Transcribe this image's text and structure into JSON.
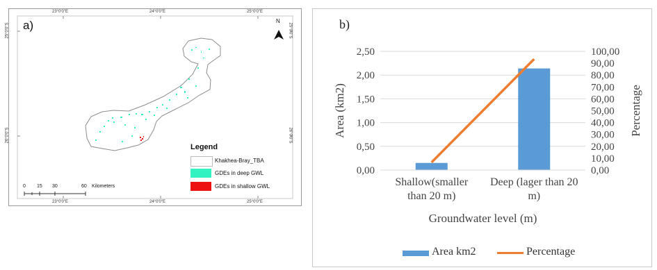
{
  "panel_a": {
    "label": "a)",
    "top_ticks": [
      "23°0'0\"E",
      "24°0'0\"E",
      "25°0'0\"E"
    ],
    "bottom_ticks": [
      "23°0'0\"E",
      "24°0'0\"E",
      "25°0'0\"E"
    ],
    "left_ticks": [
      "25°0'0\"S",
      "26°0'0\"S"
    ],
    "right_ticks": [
      "25°0'0\"S",
      "26°0'0\"S"
    ],
    "north_label": "N",
    "legend": {
      "title": "Legend",
      "items": [
        {
          "label": "Khakhea-Bray_TBA",
          "color": "#ffffff"
        },
        {
          "label": "GDEs in deep GWL",
          "color": "#33f2c2"
        },
        {
          "label": "GDEs in shallow GWL",
          "color": "#ee1111"
        }
      ]
    },
    "scale_bar": {
      "ticks": [
        "0",
        "15",
        "30",
        "60"
      ],
      "unit": "Kilometers"
    }
  },
  "panel_b": {
    "label": "b)",
    "legend_items": [
      {
        "label": "Area km2",
        "color": "#5b9bd5"
      },
      {
        "label": "Percentage",
        "color": "#ed7d31"
      }
    ]
  },
  "chart_data": {
    "type": "bar",
    "categories": [
      "Shallow(smaller than 20 m)",
      "Deep (lager than 20 m)"
    ],
    "category_lines": [
      [
        "Shallow(smaller",
        "than 20 m)"
      ],
      [
        "Deep (lager than 20",
        "m)"
      ]
    ],
    "xlabel": "Groundwater level (m)",
    "ylabel": "Area (km2)",
    "y2label": "Percentage",
    "ylim": [
      0,
      2.5
    ],
    "y2lim": [
      0,
      100
    ],
    "y_ticks": [
      "0,00",
      "0,50",
      "1,00",
      "1,50",
      "2,00",
      "2,50"
    ],
    "y2_ticks": [
      "0,00",
      "10,00",
      "20,00",
      "30,00",
      "40,00",
      "50,00",
      "60,00",
      "70,00",
      "80,00",
      "90,00",
      "100,00"
    ],
    "series": [
      {
        "name": "Area km2",
        "type": "bar",
        "axis": "left",
        "values": [
          0.15,
          2.14
        ]
      },
      {
        "name": "Percentage",
        "type": "line",
        "axis": "right",
        "values": [
          6.5,
          93.5
        ]
      }
    ]
  }
}
